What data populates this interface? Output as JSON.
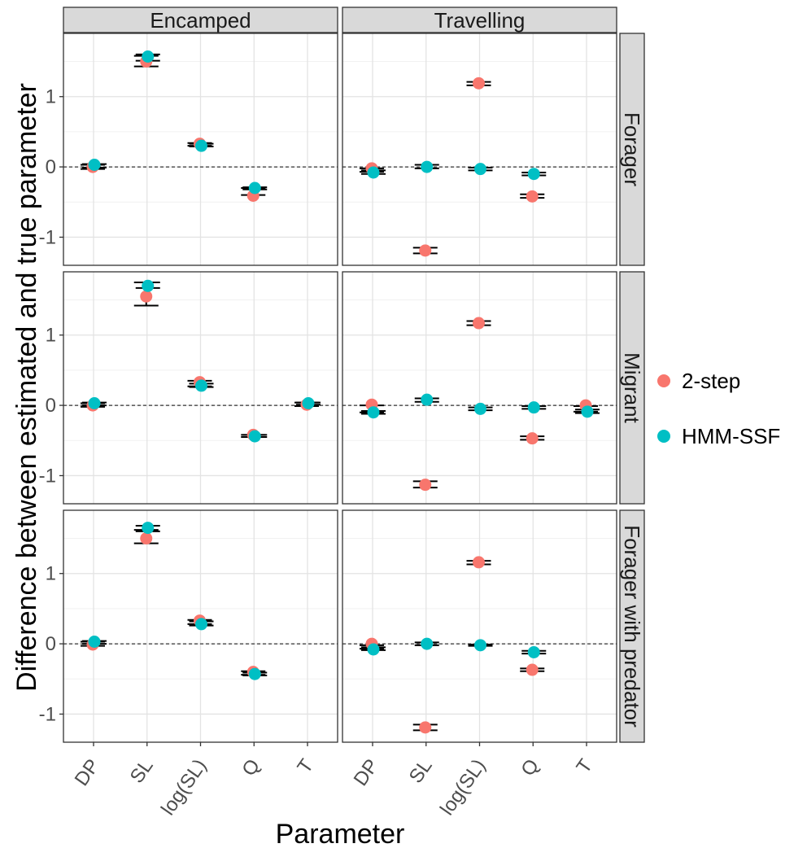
{
  "chart_data": {
    "type": "scatter",
    "facet_cols": [
      "Encamped",
      "Travelling"
    ],
    "facet_rows": [
      "Forager",
      "Migrant",
      "Forager with predator"
    ],
    "categories": [
      "DP",
      "SL",
      "log(SL)",
      "Q",
      "T"
    ],
    "xlabel": "Parameter",
    "ylabel": "Difference between estimated and true parameter",
    "ylim": [
      -1.4,
      1.9
    ],
    "yticks": [
      -1,
      0,
      1
    ],
    "ytick_labels": [
      "-1",
      "0",
      "1"
    ],
    "reference_line": 0,
    "legend_position": "right",
    "grid": true,
    "series": [
      {
        "name": "2-step",
        "color": "#F8766D",
        "panels": [
          {
            "row": "Forager",
            "col": "Encamped",
            "points": [
              {
                "x": "DP",
                "y": 0.0,
                "lo": -0.03,
                "hi": 0.03
              },
              {
                "x": "SL",
                "y": 1.5,
                "lo": 1.43,
                "hi": 1.58
              },
              {
                "x": "log(SL)",
                "y": 0.33,
                "lo": 0.3,
                "hi": 0.34
              },
              {
                "x": "Q",
                "y": -0.41,
                "lo": -0.4,
                "hi": -0.3
              }
            ]
          },
          {
            "row": "Forager",
            "col": "Travelling",
            "points": [
              {
                "x": "DP",
                "y": -0.02,
                "lo": -0.07,
                "hi": -0.02
              },
              {
                "x": "SL",
                "y": -1.19,
                "lo": -1.23,
                "hi": -1.15
              },
              {
                "x": "log(SL)",
                "y": 1.19,
                "lo": 1.16,
                "hi": 1.21
              },
              {
                "x": "Q",
                "y": -0.42,
                "lo": -0.44,
                "hi": -0.39
              }
            ]
          },
          {
            "row": "Migrant",
            "col": "Encamped",
            "points": [
              {
                "x": "DP",
                "y": 0.0,
                "lo": -0.02,
                "hi": 0.03
              },
              {
                "x": "SL",
                "y": 1.55,
                "lo": 1.42,
                "hi": 1.75
              },
              {
                "x": "log(SL)",
                "y": 0.33,
                "lo": 0.27,
                "hi": 0.35
              },
              {
                "x": "Q",
                "y": -0.42,
                "lo": -0.45,
                "hi": -0.42
              },
              {
                "x": "T",
                "y": 0.01,
                "lo": -0.01,
                "hi": 0.04
              }
            ]
          },
          {
            "row": "Migrant",
            "col": "Travelling",
            "points": [
              {
                "x": "DP",
                "y": 0.01,
                "lo": -0.1,
                "hi": 0.0
              },
              {
                "x": "SL",
                "y": -1.13,
                "lo": -1.17,
                "hi": -1.08
              },
              {
                "x": "log(SL)",
                "y": 1.17,
                "lo": 1.14,
                "hi": 1.2
              },
              {
                "x": "Q",
                "y": -0.47,
                "lo": -0.49,
                "hi": -0.44
              },
              {
                "x": "T",
                "y": 0.0,
                "lo": -0.09,
                "hi": -0.01
              }
            ]
          },
          {
            "row": "Forager with predator",
            "col": "Encamped",
            "points": [
              {
                "x": "DP",
                "y": -0.01,
                "lo": -0.03,
                "hi": 0.03
              },
              {
                "x": "SL",
                "y": 1.5,
                "lo": 1.43,
                "hi": 1.62
              },
              {
                "x": "log(SL)",
                "y": 0.33,
                "lo": 0.28,
                "hi": 0.34
              },
              {
                "x": "Q",
                "y": -0.4,
                "lo": -0.44,
                "hi": -0.39
              }
            ]
          },
          {
            "row": "Forager with predator",
            "col": "Travelling",
            "points": [
              {
                "x": "DP",
                "y": 0.0,
                "lo": -0.07,
                "hi": -0.02
              },
              {
                "x": "SL",
                "y": -1.19,
                "lo": -1.23,
                "hi": -1.15
              },
              {
                "x": "log(SL)",
                "y": 1.16,
                "lo": 1.13,
                "hi": 1.18
              },
              {
                "x": "Q",
                "y": -0.37,
                "lo": -0.39,
                "hi": -0.35
              }
            ]
          }
        ]
      },
      {
        "name": "HMM-SSF",
        "color": "#00BFC4",
        "panels": [
          {
            "row": "Forager",
            "col": "Encamped",
            "points": [
              {
                "x": "DP",
                "y": 0.03,
                "lo": -0.01,
                "hi": 0.04
              },
              {
                "x": "SL",
                "y": 1.57,
                "lo": 1.51,
                "hi": 1.6
              },
              {
                "x": "log(SL)",
                "y": 0.3,
                "lo": 0.29,
                "hi": 0.33
              },
              {
                "x": "Q",
                "y": -0.3,
                "lo": -0.32,
                "hi": -0.29
              }
            ]
          },
          {
            "row": "Forager",
            "col": "Travelling",
            "points": [
              {
                "x": "DP",
                "y": -0.08,
                "lo": -0.1,
                "hi": -0.05
              },
              {
                "x": "SL",
                "y": 0.0,
                "lo": -0.02,
                "hi": 0.03
              },
              {
                "x": "log(SL)",
                "y": -0.03,
                "lo": -0.05,
                "hi": -0.01
              },
              {
                "x": "Q",
                "y": -0.1,
                "lo": -0.12,
                "hi": -0.08
              }
            ]
          },
          {
            "row": "Migrant",
            "col": "Encamped",
            "points": [
              {
                "x": "DP",
                "y": 0.03,
                "lo": 0.0,
                "hi": 0.04
              },
              {
                "x": "SL",
                "y": 1.7,
                "lo": 1.67,
                "hi": 1.75
              },
              {
                "x": "log(SL)",
                "y": 0.28,
                "lo": 0.26,
                "hi": 0.31
              },
              {
                "x": "Q",
                "y": -0.44,
                "lo": -0.45,
                "hi": -0.42
              },
              {
                "x": "T",
                "y": 0.03,
                "lo": 0.01,
                "hi": 0.04
              }
            ]
          },
          {
            "row": "Migrant",
            "col": "Travelling",
            "points": [
              {
                "x": "DP",
                "y": -0.1,
                "lo": -0.12,
                "hi": -0.08
              },
              {
                "x": "SL",
                "y": 0.08,
                "lo": 0.05,
                "hi": 0.1
              },
              {
                "x": "log(SL)",
                "y": -0.05,
                "lo": -0.07,
                "hi": -0.03
              },
              {
                "x": "Q",
                "y": -0.03,
                "lo": -0.05,
                "hi": -0.01
              },
              {
                "x": "T",
                "y": -0.09,
                "lo": -0.11,
                "hi": -0.06
              }
            ]
          },
          {
            "row": "Forager with predator",
            "col": "Encamped",
            "points": [
              {
                "x": "DP",
                "y": 0.03,
                "lo": 0.0,
                "hi": 0.04
              },
              {
                "x": "SL",
                "y": 1.65,
                "lo": 1.6,
                "hi": 1.68
              },
              {
                "x": "log(SL)",
                "y": 0.28,
                "lo": 0.26,
                "hi": 0.32
              },
              {
                "x": "Q",
                "y": -0.43,
                "lo": -0.45,
                "hi": -0.41
              }
            ]
          },
          {
            "row": "Forager with predator",
            "col": "Travelling",
            "points": [
              {
                "x": "DP",
                "y": -0.08,
                "lo": -0.09,
                "hi": -0.05
              },
              {
                "x": "SL",
                "y": 0.0,
                "lo": -0.02,
                "hi": 0.02
              },
              {
                "x": "log(SL)",
                "y": -0.02,
                "lo": -0.03,
                "hi": -0.01
              },
              {
                "x": "Q",
                "y": -0.12,
                "lo": -0.14,
                "hi": -0.1
              }
            ]
          }
        ]
      }
    ]
  }
}
